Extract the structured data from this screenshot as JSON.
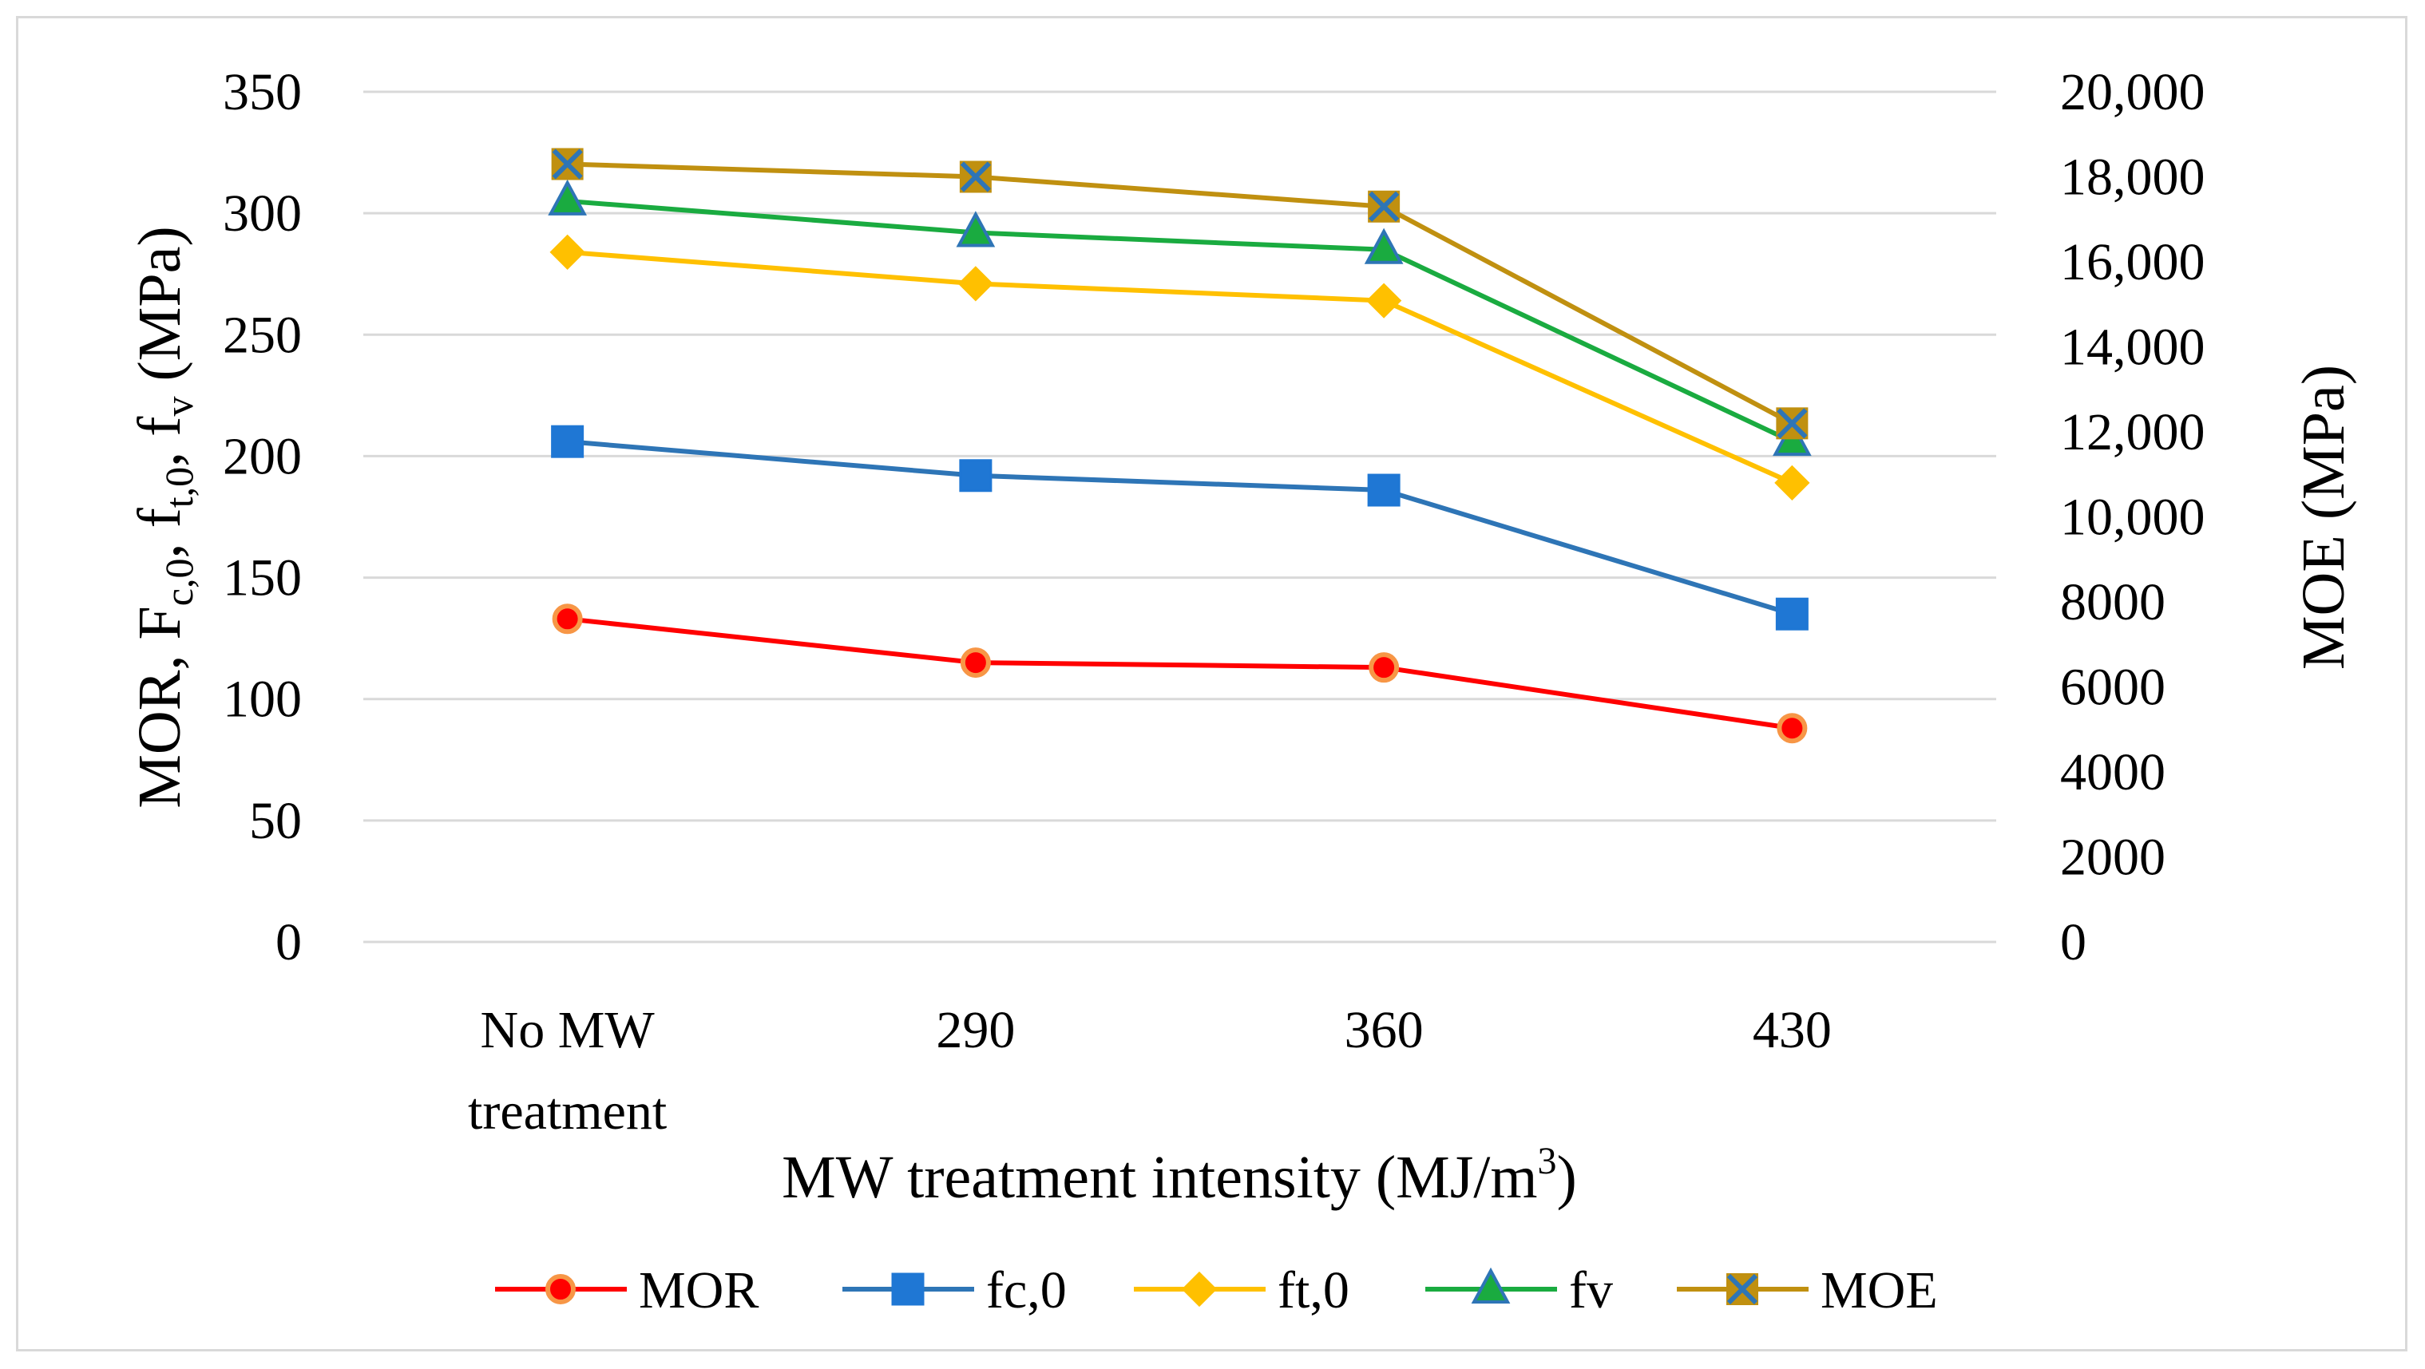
{
  "chart_data": {
    "type": "line",
    "categories": [
      "No MW treatment",
      "290",
      "360",
      "430"
    ],
    "category_lines": [
      [
        "No MW",
        "treatment"
      ],
      [
        "290"
      ],
      [
        "360"
      ],
      [
        "430"
      ]
    ],
    "xlabel": {
      "main": "MW treatment intensity (MJ/m",
      "sup": "3",
      "tail": ")"
    },
    "ylabel_left": "MOR, F c,0, f t,0, f v (MPa)",
    "ylabel_left_parts": [
      {
        "text": "MOR, F",
        "sub": false
      },
      {
        "text": "c,0",
        "sub": true
      },
      {
        "text": ",  f",
        "sub": false
      },
      {
        "text": "t,0",
        "sub": true
      },
      {
        "text": ",  f",
        "sub": false
      },
      {
        "text": "v",
        "sub": true
      },
      {
        "text": " (MPa)",
        "sub": false
      }
    ],
    "ylabel_right": "MOE (MPa)",
    "ylim_left": [
      0,
      350
    ],
    "ylim_right": [
      0,
      20000
    ],
    "left_ticks": [
      0,
      50,
      100,
      150,
      200,
      250,
      300,
      350
    ],
    "left_tick_labels": [
      "0",
      "50",
      "100",
      "150",
      "200",
      "250",
      "300",
      "350"
    ],
    "right_ticks": [
      0,
      2000,
      4000,
      6000,
      8000,
      10000,
      12000,
      14000,
      16000,
      18000,
      20000
    ],
    "right_tick_labels": [
      "0",
      "2000",
      "4000",
      "6000",
      "8000",
      "10,000",
      "12,000",
      "14,000",
      "16,000",
      "18,000",
      "20,000"
    ],
    "grid": true,
    "legend_position": "bottom",
    "series": [
      {
        "name": "MOR",
        "axis": "left",
        "values": [
          133,
          115,
          113,
          88
        ],
        "color": "#ff0000",
        "marker": "circle",
        "marker_fill": "#ff0000",
        "marker_edge": "#f79646"
      },
      {
        "name": "fc,0",
        "axis": "left",
        "values": [
          206,
          192,
          186,
          135
        ],
        "color": "#2e75b6",
        "marker": "square",
        "marker_fill": "#1f77d4",
        "marker_edge": "#1f77d4"
      },
      {
        "name": "ft,0",
        "axis": "left",
        "values": [
          284,
          271,
          264,
          189
        ],
        "color": "#ffc000",
        "marker": "diamond",
        "marker_fill": "#ffc000",
        "marker_edge": "#ffc000"
      },
      {
        "name": "fv",
        "axis": "left",
        "values": [
          305,
          292,
          285,
          206
        ],
        "color": "#1aab40",
        "marker": "triangle",
        "marker_fill": "#1aab40",
        "marker_edge": "#2e75b6"
      },
      {
        "name": "MOE",
        "axis": "right",
        "values": [
          18300,
          18000,
          17300,
          12200
        ],
        "color": "#c09010",
        "marker": "x-square",
        "marker_fill": "#c09010",
        "marker_edge": "#2e75b6"
      }
    ]
  }
}
